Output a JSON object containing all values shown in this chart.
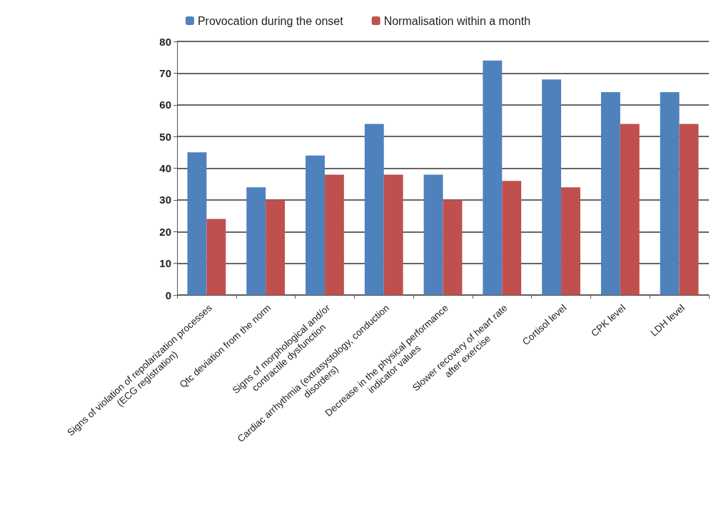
{
  "chart_data": {
    "type": "bar",
    "categories": [
      "Signs of violation of repolarization processes\n(ECG registration)",
      "Qtc deviation from the norm",
      "Signs of morphological and/or\ncontractile dysfunction",
      "Cardiac arrhythmia (extrasystology, conduction\ndisorders)",
      "Decrease in the physical performance\nindicator values",
      "Slower recovery of heart rate\nafter exercise",
      "Cortisol level",
      "CPK level",
      "LDH level"
    ],
    "series": [
      {
        "name": "Provocation during the onset",
        "color": "#4f81bd",
        "values": [
          45,
          34,
          44,
          54,
          38,
          74,
          68,
          64,
          64
        ]
      },
      {
        "name": "Normalisation within a month",
        "color": "#c0504d",
        "values": [
          24,
          30,
          38,
          38,
          30,
          36,
          34,
          54,
          54
        ]
      }
    ],
    "ylim": [
      0,
      80
    ],
    "yticks": [
      0,
      10,
      20,
      30,
      40,
      50,
      60,
      70,
      80
    ],
    "grid": "y",
    "legend": "top"
  }
}
